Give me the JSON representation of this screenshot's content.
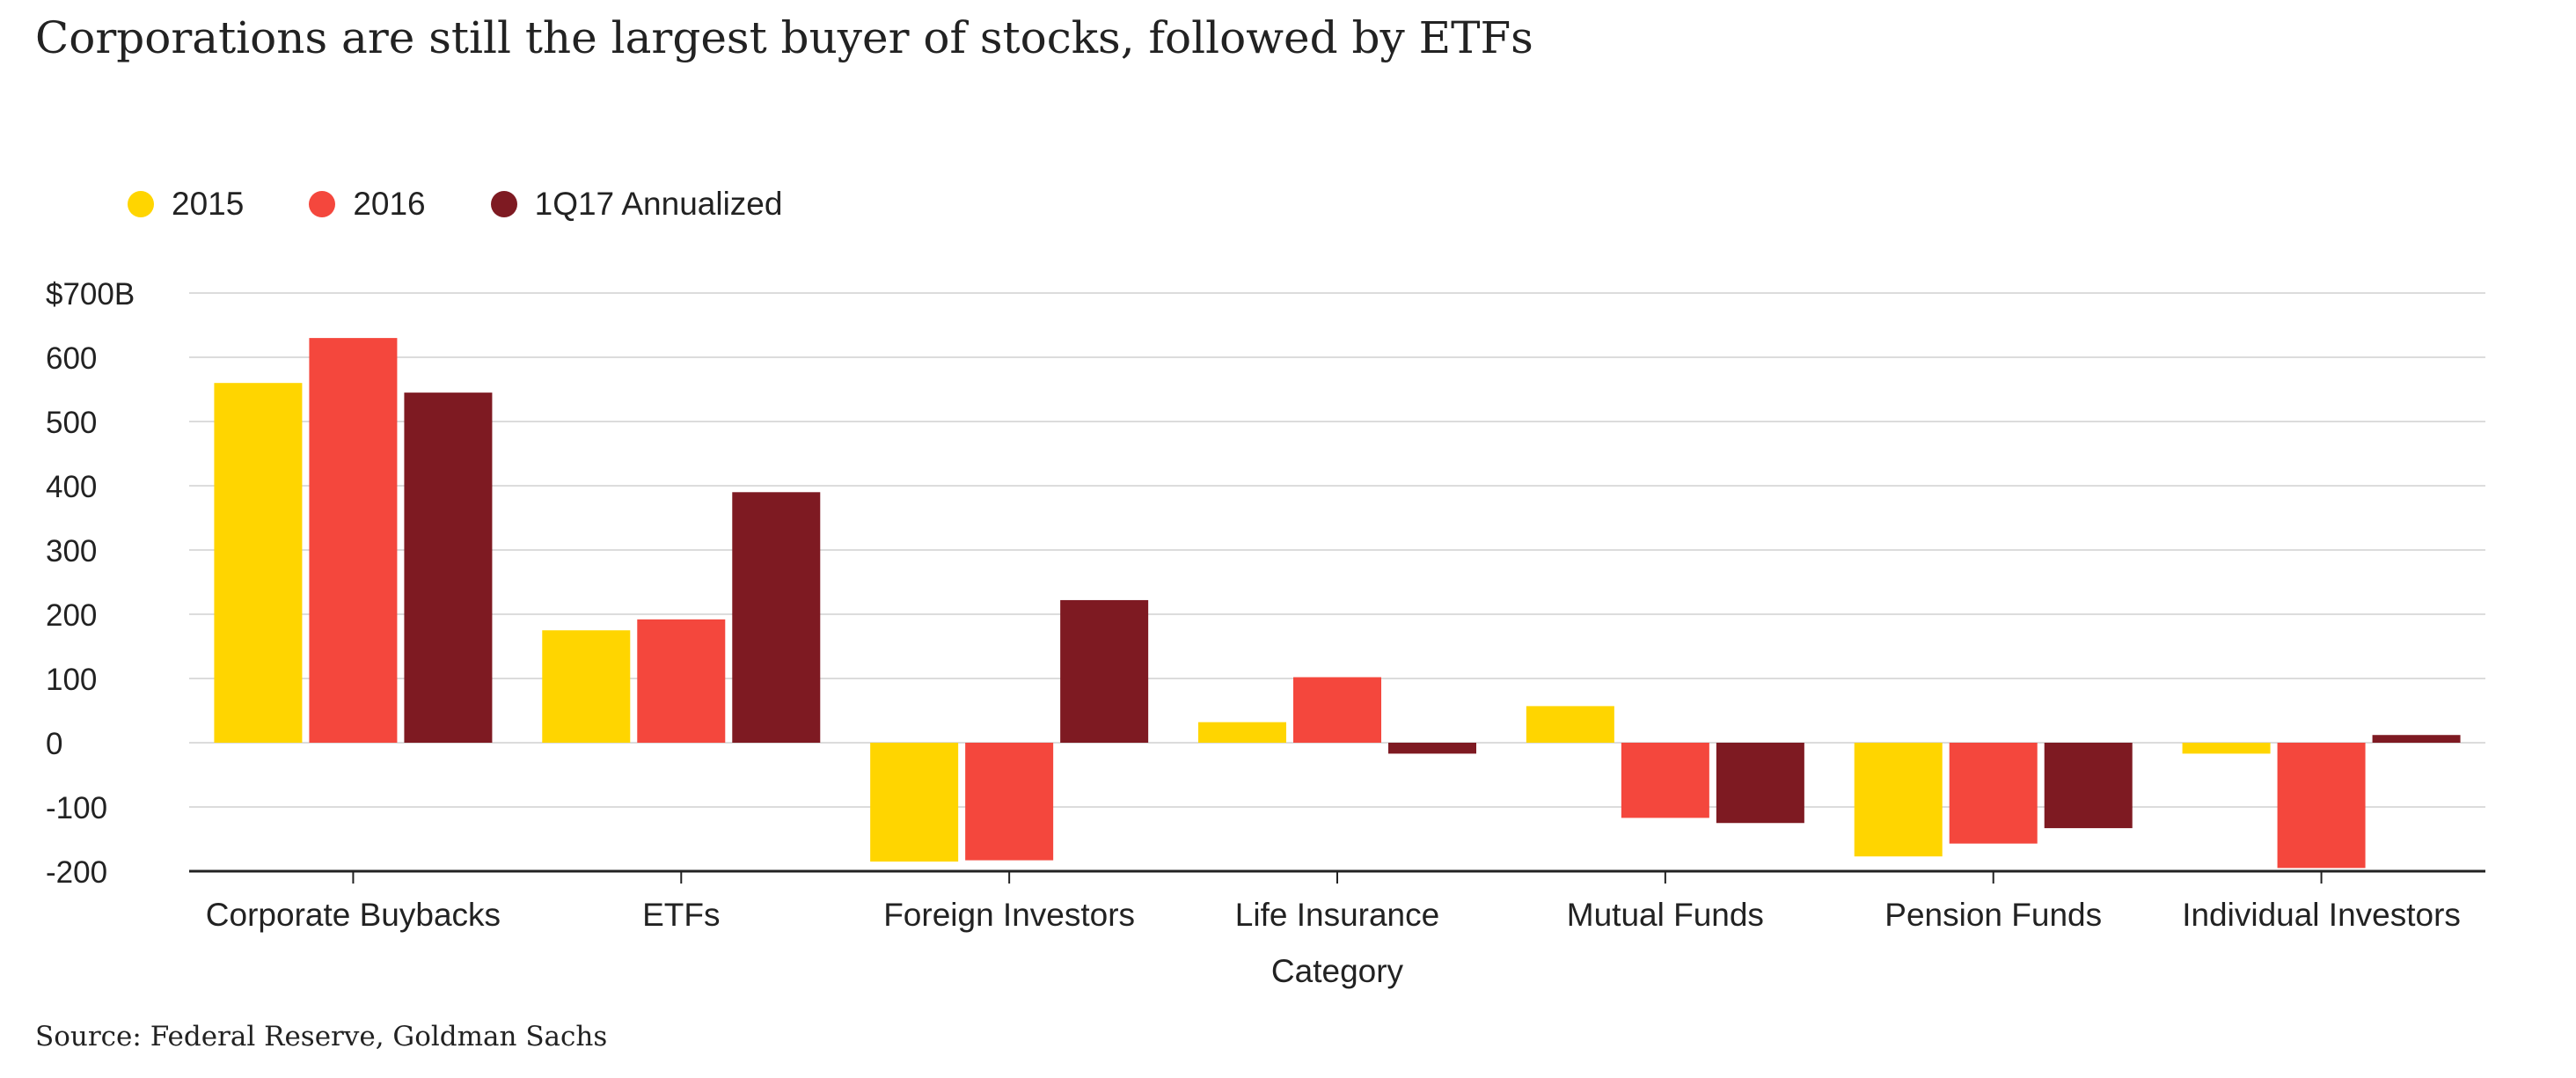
{
  "chart_data": {
    "type": "bar",
    "title": "Corporations are still the largest buyer of stocks, followed by ETFs",
    "xlabel": "Category",
    "ylabel": "",
    "categories": [
      "Corporate Buybacks",
      "ETFs",
      "Foreign Investors",
      "Life Insurance",
      "Mutual Funds",
      "Pension Funds",
      "Individual Investors"
    ],
    "series": [
      {
        "name": "2015",
        "color": "#FFD500",
        "values": [
          560,
          175,
          -185,
          32,
          57,
          -177,
          -17
        ]
      },
      {
        "name": "2016",
        "color": "#F4473D",
        "values": [
          630,
          192,
          -183,
          102,
          -117,
          -157,
          -195
        ]
      },
      {
        "name": "1Q17 Annualized",
        "color": "#7E1A22",
        "values": [
          545,
          390,
          222,
          -17,
          -125,
          -133,
          12
        ]
      }
    ],
    "ylim": [
      -200,
      700
    ],
    "yticks": [
      700,
      600,
      500,
      400,
      300,
      200,
      100,
      0,
      -100,
      -200
    ],
    "ytick_labels": [
      "$700B",
      "600",
      "500",
      "400",
      "300",
      "200",
      "100",
      "0",
      "-100",
      "-200"
    ],
    "grid": true,
    "legend_position": "top-left",
    "source": "Source: Federal Reserve, Goldman Sachs"
  }
}
